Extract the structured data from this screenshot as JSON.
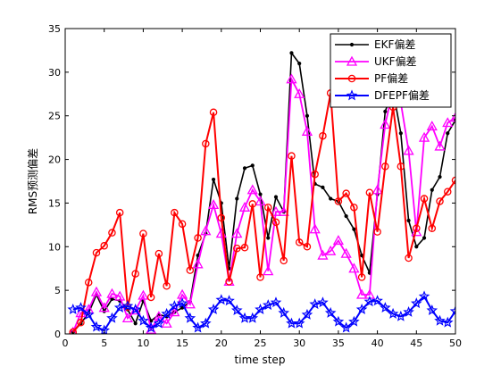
{
  "chart_data": {
    "type": "line",
    "xlabel": "time step",
    "ylabel": "RMS预测偏差",
    "xlim": [
      0,
      50
    ],
    "ylim": [
      0,
      35
    ],
    "xticks": [
      0,
      5,
      10,
      15,
      20,
      25,
      30,
      35,
      40,
      45,
      50
    ],
    "yticks": [
      0,
      5,
      10,
      15,
      20,
      25,
      30,
      35
    ],
    "grid": false,
    "legend_position": "top-right",
    "x": [
      1,
      2,
      3,
      4,
      5,
      6,
      7,
      8,
      9,
      10,
      11,
      12,
      13,
      14,
      15,
      16,
      17,
      18,
      19,
      20,
      21,
      22,
      23,
      24,
      25,
      26,
      27,
      28,
      29,
      30,
      31,
      32,
      33,
      34,
      35,
      36,
      37,
      38,
      39,
      40,
      41,
      42,
      43,
      44,
      45,
      46,
      47,
      48,
      49,
      50
    ],
    "series": [
      {
        "name": "EKF偏差",
        "color": "#000000",
        "marker": "dot",
        "values": [
          0.2,
          1.2,
          2.4,
          4.5,
          2.6,
          4.0,
          3.8,
          2.8,
          1.2,
          3.8,
          1.5,
          2.2,
          2.0,
          2.5,
          3.0,
          3.7,
          9.0,
          11.5,
          17.7,
          15.0,
          7.5,
          15.5,
          19.0,
          19.3,
          16.0,
          11.0,
          15.7,
          14.0,
          32.2,
          31.0,
          25.0,
          17.2,
          16.8,
          15.5,
          15.2,
          13.5,
          12.0,
          9.0,
          7.0,
          16.0,
          25.5,
          28.0,
          23.0,
          13.0,
          10.0,
          11.0,
          16.5,
          18.0,
          23.0,
          24.5
        ]
      },
      {
        "name": "UKF偏差",
        "color": "#ff00ff",
        "marker": "triangle",
        "values": [
          0.2,
          2.4,
          2.8,
          4.8,
          3.0,
          4.6,
          4.3,
          1.8,
          2.7,
          4.4,
          0.5,
          2.0,
          1.2,
          2.5,
          4.5,
          3.4,
          8.0,
          11.8,
          14.8,
          11.5,
          6.0,
          11.5,
          14.5,
          16.5,
          15.2,
          7.2,
          14.0,
          14.0,
          29.2,
          27.5,
          23.2,
          12.0,
          9.0,
          9.5,
          10.7,
          9.2,
          7.5,
          4.5,
          4.5,
          16.5,
          24.0,
          28.0,
          26.5,
          21.0,
          11.7,
          22.5,
          23.8,
          21.5,
          24.2,
          24.8
        ]
      },
      {
        "name": "PF偏差",
        "color": "#ff0000",
        "marker": "circle",
        "values": [
          0.2,
          1.3,
          5.9,
          9.3,
          10.1,
          11.6,
          13.9,
          3.1,
          6.9,
          11.5,
          4.2,
          9.2,
          5.5,
          13.9,
          12.6,
          7.3,
          11.0,
          21.8,
          25.4,
          13.3,
          6.0,
          9.8,
          9.9,
          14.9,
          6.5,
          14.5,
          12.8,
          8.4,
          20.4,
          10.5,
          10.0,
          18.3,
          22.7,
          27.6,
          15.2,
          16.1,
          14.5,
          6.5,
          16.2,
          11.7,
          19.2,
          26.0,
          19.2,
          8.7,
          12.1,
          15.5,
          12.1,
          15.2,
          16.3,
          17.6
        ]
      },
      {
        "name": "DFEPF偏差",
        "color": "#0000ff",
        "marker": "star",
        "values": [
          2.8,
          3.0,
          2.2,
          0.8,
          0.4,
          1.8,
          3.0,
          3.2,
          2.8,
          1.5,
          0.7,
          1.2,
          2.3,
          3.2,
          3.5,
          1.8,
          0.7,
          1.2,
          2.8,
          3.9,
          3.8,
          2.7,
          1.8,
          1.8,
          2.8,
          3.3,
          3.6,
          2.4,
          1.2,
          1.2,
          2.2,
          3.4,
          3.6,
          2.4,
          1.4,
          0.7,
          1.4,
          2.8,
          3.7,
          3.8,
          3.0,
          2.3,
          2.0,
          2.5,
          3.5,
          4.3,
          2.7,
          1.5,
          1.3,
          2.6
        ]
      }
    ]
  }
}
